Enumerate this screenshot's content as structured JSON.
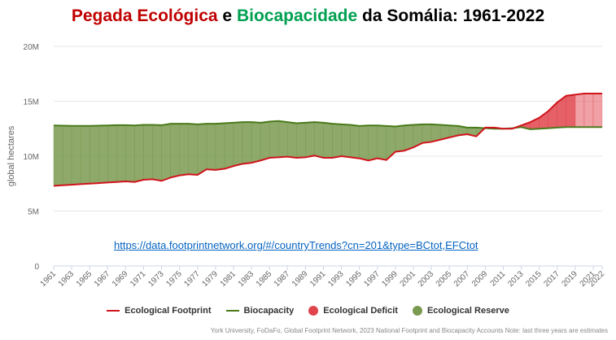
{
  "title": {
    "part1": "Pegada Ecológica",
    "part2": " e ",
    "part3": "Biocapacidade",
    "part4": " da Somália: 1961-2022"
  },
  "url_text": "https://data.footprintnetwork.org/#/countryTrends?cn=201&type=BCtot,EFCtot",
  "credits": "York University, FoDaFo, Global Footprint Network, 2023 National Footprint and Biocapacity Accounts Note: last three years are estimates",
  "colors": {
    "footprint": "#d0141c",
    "biocapacity": "#4a7a1a",
    "deficit": "#e0444c",
    "reserve": "#7a9a50"
  },
  "chart_data": {
    "type": "area",
    "ylabel": "global hectares",
    "ylim": [
      0,
      20000000
    ],
    "yticks": [
      0,
      5000000,
      10000000,
      15000000,
      20000000
    ],
    "ytick_labels": [
      "0",
      "5M",
      "10M",
      "15M",
      "20M"
    ],
    "xlim": [
      1961,
      2022
    ],
    "xtick_labels": [
      "1961",
      "1963",
      "1965",
      "1967",
      "1969",
      "1971",
      "1973",
      "1975",
      "1977",
      "1979",
      "1981",
      "1983",
      "1985",
      "1987",
      "1989",
      "1991",
      "1993",
      "1995",
      "1997",
      "1999",
      "2001",
      "2003",
      "2005",
      "2007",
      "2009",
      "2011",
      "2013",
      "2015",
      "2017",
      "2019",
      "2021",
      "2022"
    ],
    "estimate_from_year": 2020,
    "years": [
      1961,
      1962,
      1963,
      1964,
      1965,
      1966,
      1967,
      1968,
      1969,
      1970,
      1971,
      1972,
      1973,
      1974,
      1975,
      1976,
      1977,
      1978,
      1979,
      1980,
      1981,
      1982,
      1983,
      1984,
      1985,
      1986,
      1987,
      1988,
      1989,
      1990,
      1991,
      1992,
      1993,
      1994,
      1995,
      1996,
      1997,
      1998,
      1999,
      2000,
      2001,
      2002,
      2003,
      2004,
      2005,
      2006,
      2007,
      2008,
      2009,
      2010,
      2011,
      2012,
      2013,
      2014,
      2015,
      2016,
      2017,
      2018,
      2019,
      2020,
      2021,
      2022
    ],
    "series": [
      {
        "name": "Ecological Footprint",
        "values": [
          7300000,
          7350000,
          7400000,
          7450000,
          7500000,
          7550000,
          7600000,
          7650000,
          7700000,
          7650000,
          7850000,
          7900000,
          7750000,
          8050000,
          8250000,
          8350000,
          8300000,
          8800000,
          8750000,
          8850000,
          9100000,
          9300000,
          9400000,
          9600000,
          9850000,
          9900000,
          9950000,
          9850000,
          9900000,
          10050000,
          9850000,
          9850000,
          10000000,
          9900000,
          9800000,
          9600000,
          9800000,
          9650000,
          10400000,
          10500000,
          10800000,
          11200000,
          11300000,
          11500000,
          11700000,
          11900000,
          12000000,
          11800000,
          12600000,
          12600000,
          12500000,
          12500000,
          12800000,
          13100000,
          13500000,
          14100000,
          14900000,
          15500000,
          15600000,
          15700000,
          15700000,
          15700000
        ]
      },
      {
        "name": "Biocapacity",
        "values": [
          12800000,
          12780000,
          12760000,
          12760000,
          12760000,
          12780000,
          12800000,
          12820000,
          12820000,
          12800000,
          12850000,
          12850000,
          12820000,
          12950000,
          12950000,
          12950000,
          12900000,
          12950000,
          12950000,
          13000000,
          13050000,
          13100000,
          13100000,
          13050000,
          13150000,
          13200000,
          13100000,
          13000000,
          13050000,
          13100000,
          13050000,
          12950000,
          12900000,
          12850000,
          12750000,
          12800000,
          12800000,
          12750000,
          12700000,
          12800000,
          12850000,
          12900000,
          12900000,
          12850000,
          12800000,
          12750000,
          12600000,
          12600000,
          12550000,
          12500000,
          12500000,
          12550000,
          12650000,
          12450000,
          12500000,
          12550000,
          12600000,
          12650000,
          12650000,
          12650000,
          12650000,
          12650000
        ]
      }
    ],
    "legend": [
      "Ecological Footprint",
      "Biocapacity",
      "Ecological Deficit",
      "Ecological Reserve"
    ],
    "legend_position": "bottom",
    "grid": true
  }
}
